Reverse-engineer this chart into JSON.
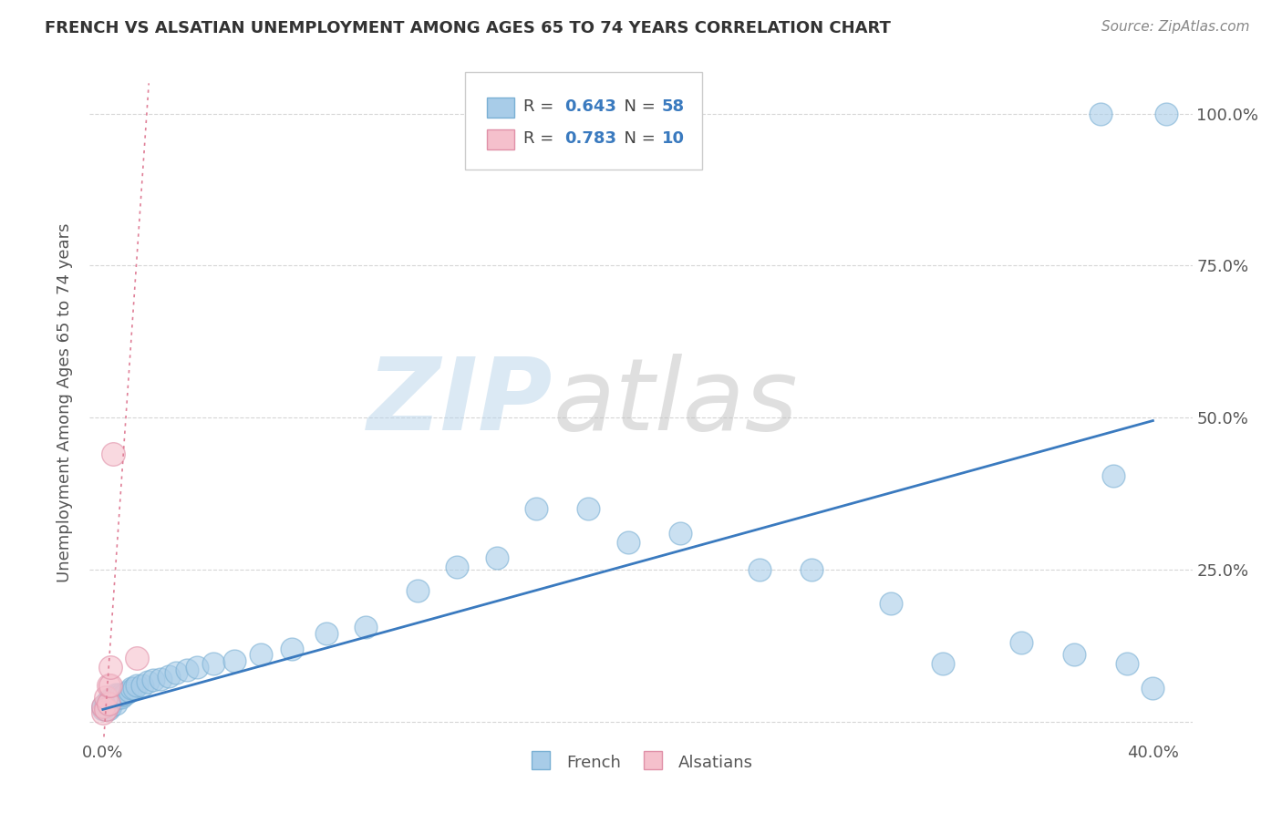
{
  "title": "FRENCH VS ALSATIAN UNEMPLOYMENT AMONG AGES 65 TO 74 YEARS CORRELATION CHART",
  "source": "Source: ZipAtlas.com",
  "ylabel": "Unemployment Among Ages 65 to 74 years",
  "french_R": 0.643,
  "french_N": 58,
  "alsatian_R": 0.783,
  "alsatian_N": 10,
  "french_fill": "#a8cce8",
  "french_edge": "#7ab0d4",
  "alsatian_fill": "#f5c0cc",
  "alsatian_edge": "#e090a8",
  "french_line_color": "#3a7abf",
  "alsatian_line_color": "#e08098",
  "legend_text_color": "#3a7abf",
  "watermark_zip_color": "#c8dff0",
  "watermark_atlas_color": "#c8c8c8",
  "background_color": "#ffffff",
  "grid_color": "#cccccc",
  "axis_text_color": "#555555",
  "title_color": "#333333",
  "source_color": "#888888",
  "x_tick_labels": [
    "0.0%",
    "",
    "",
    "",
    "40.0%"
  ],
  "x_tick_positions": [
    0.0,
    0.1,
    0.2,
    0.3,
    0.4
  ],
  "y_tick_labels": [
    "",
    "25.0%",
    "50.0%",
    "75.0%",
    "100.0%"
  ],
  "y_tick_positions": [
    0.0,
    0.25,
    0.5,
    0.75,
    1.0
  ],
  "xlim": [
    -0.005,
    0.415
  ],
  "ylim": [
    -0.03,
    1.08
  ],
  "french_line_x1": 0.0,
  "french_line_y1": 0.02,
  "french_line_x2": 0.4,
  "french_line_y2": 0.495,
  "alsatian_line_x1": 0.0,
  "alsatian_line_y1": -0.05,
  "alsatian_line_x2": 0.0175,
  "alsatian_line_y2": 1.05,
  "french_x": [
    0.0,
    0.0,
    0.001,
    0.001,
    0.001,
    0.002,
    0.002,
    0.002,
    0.003,
    0.003,
    0.003,
    0.004,
    0.004,
    0.005,
    0.005,
    0.005,
    0.006,
    0.006,
    0.007,
    0.007,
    0.008,
    0.009,
    0.01,
    0.011,
    0.012,
    0.013,
    0.015,
    0.017,
    0.019,
    0.022,
    0.025,
    0.028,
    0.032,
    0.036,
    0.042,
    0.05,
    0.06,
    0.072,
    0.085,
    0.1,
    0.12,
    0.135,
    0.15,
    0.165,
    0.185,
    0.2,
    0.22,
    0.25,
    0.27,
    0.3,
    0.32,
    0.35,
    0.37,
    0.39,
    0.4,
    0.38,
    0.385,
    0.405
  ],
  "french_y": [
    0.02,
    0.025,
    0.02,
    0.025,
    0.03,
    0.02,
    0.03,
    0.035,
    0.025,
    0.03,
    0.035,
    0.035,
    0.04,
    0.03,
    0.04,
    0.045,
    0.04,
    0.045,
    0.04,
    0.045,
    0.045,
    0.048,
    0.05,
    0.055,
    0.055,
    0.06,
    0.06,
    0.065,
    0.068,
    0.07,
    0.075,
    0.08,
    0.085,
    0.09,
    0.095,
    0.1,
    0.11,
    0.12,
    0.145,
    0.155,
    0.215,
    0.255,
    0.27,
    0.35,
    0.35,
    0.295,
    0.31,
    0.25,
    0.25,
    0.195,
    0.095,
    0.13,
    0.11,
    0.095,
    0.055,
    1.0,
    0.405,
    1.0
  ],
  "alsatian_x": [
    0.0,
    0.0,
    0.001,
    0.001,
    0.002,
    0.002,
    0.003,
    0.003,
    0.004,
    0.013
  ],
  "alsatian_y": [
    0.015,
    0.025,
    0.02,
    0.04,
    0.03,
    0.06,
    0.06,
    0.09,
    0.44,
    0.105
  ]
}
